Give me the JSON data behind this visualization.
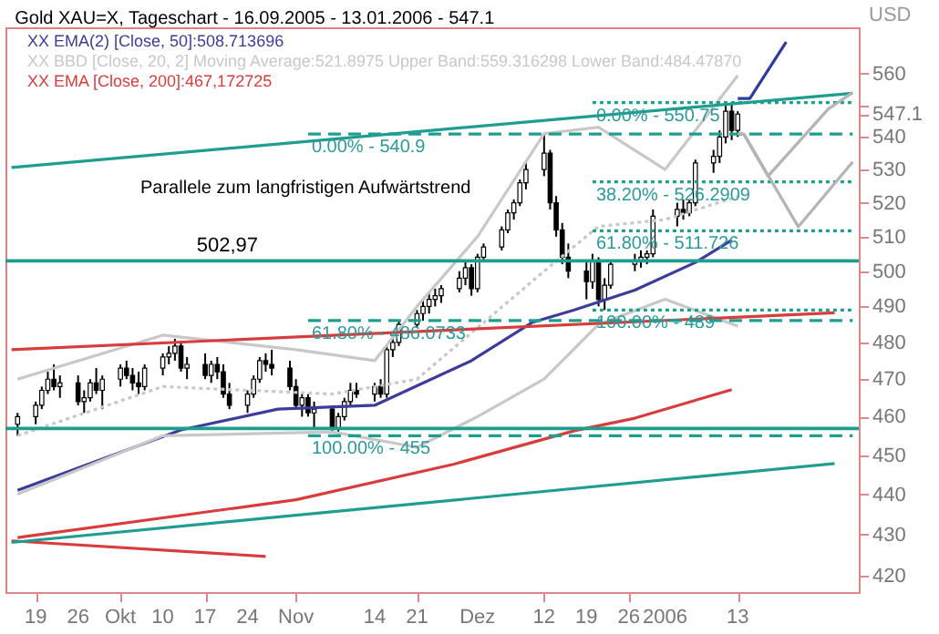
{
  "chart_data": {
    "type": "candlestick",
    "title": "Gold XAU=X, Tageschart - 16.09.2005 - 13.01.2006 - 547.1",
    "ylabel": "USD",
    "log": true,
    "legend": "top left",
    "xlim": [
      "2005-09-14",
      "2006-02-02"
    ],
    "xticks": [
      {
        "value": "2005-09-19",
        "label": "19"
      },
      {
        "value": "2005-09-26",
        "label": "26"
      },
      {
        "value": "2005-10-03",
        "label": "Okt"
      },
      {
        "value": "2005-10-10",
        "label": "10"
      },
      {
        "value": "2005-10-17",
        "label": "17"
      },
      {
        "value": "2005-10-24",
        "label": "24"
      },
      {
        "value": "2005-11-01",
        "label": "Nov"
      },
      {
        "value": "2005-11-14",
        "label": "14"
      },
      {
        "value": "2005-11-21",
        "label": "21"
      },
      {
        "value": "2005-12-01",
        "label": "Dez"
      },
      {
        "value": "2005-12-12",
        "label": "12"
      },
      {
        "value": "2005-12-19",
        "label": "19"
      },
      {
        "value": "2005-12-26",
        "label": "26"
      },
      {
        "value": "2006-01-01",
        "label": "2006"
      },
      {
        "value": "2006-01-13",
        "label": "13"
      }
    ],
    "ylim": [
      416,
      575
    ],
    "yticks": [
      420,
      430,
      440,
      450,
      460,
      470,
      480,
      490,
      500,
      510,
      520,
      530,
      540,
      547.1,
      {
        "value": 550,
        "label": null
      },
      560
    ],
    "x": [
      "2005-09-16",
      "2005-09-19",
      "2005-09-20",
      "2005-09-21",
      "2005-09-22",
      "2005-09-23",
      "2005-09-26",
      "2005-09-27",
      "2005-09-28",
      "2005-09-29",
      "2005-09-30",
      "2005-10-03",
      "2005-10-04",
      "2005-10-05",
      "2005-10-06",
      "2005-10-07",
      "2005-10-10",
      "2005-10-11",
      "2005-10-12",
      "2005-10-13",
      "2005-10-14",
      "2005-10-17",
      "2005-10-18",
      "2005-10-19",
      "2005-10-20",
      "2005-10-21",
      "2005-10-24",
      "2005-10-25",
      "2005-10-26",
      "2005-10-27",
      "2005-10-28",
      "2005-10-31",
      "2005-11-01",
      "2005-11-02",
      "2005-11-03",
      "2005-11-04",
      "2005-11-07",
      "2005-11-08",
      "2005-11-09",
      "2005-11-10",
      "2005-11-11",
      "2005-11-14",
      "2005-11-15",
      "2005-11-16",
      "2005-11-17",
      "2005-11-18",
      "2005-11-21",
      "2005-11-22",
      "2005-11-23",
      "2005-11-24",
      "2005-11-25",
      "2005-11-28",
      "2005-11-29",
      "2005-11-30",
      "2005-12-01",
      "2005-12-02",
      "2005-12-05",
      "2005-12-06",
      "2005-12-07",
      "2005-12-08",
      "2005-12-09",
      "2005-12-12",
      "2005-12-13",
      "2005-12-14",
      "2005-12-15",
      "2005-12-16",
      "2005-12-19",
      "2005-12-20",
      "2005-12-21",
      "2005-12-22",
      "2005-12-23",
      "2005-12-27",
      "2005-12-28",
      "2005-12-29",
      "2005-12-30",
      "2006-01-03",
      "2006-01-04",
      "2006-01-05",
      "2006-01-06",
      "2006-01-09",
      "2006-01-10",
      "2006-01-11",
      "2006-01-12",
      "2006-01-13"
    ],
    "ohlc": [
      [
        458,
        461,
        455,
        460
      ],
      [
        460,
        464,
        458,
        463
      ],
      [
        463,
        468,
        462,
        467
      ],
      [
        467,
        472,
        466,
        470
      ],
      [
        470,
        474,
        467,
        468
      ],
      [
        468,
        471,
        465,
        469
      ],
      [
        469,
        471,
        463,
        464
      ],
      [
        464,
        467,
        461,
        465
      ],
      [
        465,
        470,
        464,
        469
      ],
      [
        469,
        473,
        466,
        467
      ],
      [
        467,
        471,
        462,
        470
      ],
      [
        470,
        474,
        468,
        473
      ],
      [
        473,
        475,
        470,
        471
      ],
      [
        471,
        473,
        467,
        469
      ],
      [
        469,
        472,
        466,
        468
      ],
      [
        468,
        474,
        467,
        473
      ],
      [
        473,
        477,
        471,
        476
      ],
      [
        476,
        479,
        474,
        477
      ],
      [
        477,
        481,
        475,
        479
      ],
      [
        479,
        480,
        472,
        473
      ],
      [
        473,
        476,
        470,
        474
      ],
      [
        474,
        477,
        470,
        471
      ],
      [
        471,
        475,
        469,
        474
      ],
      [
        474,
        476,
        470,
        472
      ],
      [
        472,
        474,
        465,
        466
      ],
      [
        466,
        469,
        462,
        463
      ],
      [
        463,
        467,
        461,
        466
      ],
      [
        466,
        471,
        465,
        470
      ],
      [
        470,
        476,
        469,
        475
      ],
      [
        475,
        477,
        472,
        474
      ],
      [
        474,
        478,
        471,
        473
      ],
      [
        473,
        475,
        467,
        468
      ],
      [
        468,
        470,
        462,
        463
      ],
      [
        463,
        466,
        460,
        465
      ],
      [
        465,
        466,
        460,
        461
      ],
      [
        461,
        464,
        457,
        462
      ],
      [
        462,
        463,
        456,
        457
      ],
      [
        457,
        461,
        455,
        460
      ],
      [
        460,
        465,
        459,
        464
      ],
      [
        464,
        469,
        463,
        467
      ],
      [
        467,
        469,
        465,
        466
      ],
      [
        466,
        469,
        464,
        468
      ],
      [
        468,
        470,
        465,
        466
      ],
      [
        466,
        479,
        465,
        478
      ],
      [
        478,
        482,
        476,
        480
      ],
      [
        480,
        486,
        479,
        485
      ],
      [
        485,
        489,
        484,
        488
      ],
      [
        488,
        492,
        486,
        490
      ],
      [
        490,
        494,
        488,
        492
      ],
      [
        492,
        495,
        490,
        493
      ],
      [
        493,
        496,
        491,
        495
      ],
      [
        495,
        500,
        494,
        498
      ],
      [
        498,
        503,
        496,
        501
      ],
      [
        501,
        502,
        493,
        495
      ],
      [
        495,
        505,
        494,
        504
      ],
      [
        504,
        508,
        503,
        507
      ],
      [
        507,
        513,
        506,
        512
      ],
      [
        512,
        518,
        511,
        517
      ],
      [
        517,
        521,
        515,
        520
      ],
      [
        520,
        527,
        519,
        526
      ],
      [
        526,
        532,
        524,
        530
      ],
      [
        530,
        540.9,
        528,
        535
      ],
      [
        535,
        536,
        518,
        520
      ],
      [
        520,
        522,
        510,
        512
      ],
      [
        512,
        514,
        502,
        504
      ],
      [
        504,
        508,
        498,
        500
      ],
      [
        500,
        503,
        492,
        497
      ],
      [
        497,
        505,
        495,
        503
      ],
      [
        503,
        504,
        490,
        492
      ],
      [
        492,
        498,
        489,
        496
      ],
      [
        496,
        503,
        495,
        502
      ],
      [
        502,
        505,
        500,
        503
      ],
      [
        503,
        506,
        501,
        504
      ],
      [
        504,
        506,
        502,
        505
      ],
      [
        505,
        518,
        504,
        516
      ],
      [
        516,
        520,
        513,
        518
      ],
      [
        518,
        521,
        515,
        517
      ],
      [
        517,
        521,
        516,
        520
      ],
      [
        520,
        533,
        519,
        532
      ],
      [
        532,
        536,
        529,
        534
      ],
      [
        534,
        542,
        532,
        540
      ],
      [
        540,
        550,
        538,
        548
      ],
      [
        548,
        550.75,
        539,
        542
      ],
      [
        542,
        548,
        540,
        547.1
      ]
    ],
    "series": [
      {
        "type": "line",
        "name": "XX EMA(2) [Close, 50]:508.713696",
        "color": "#3c3c9c",
        "x": [
          "2005-09-16",
          "2005-10-13",
          "2005-10-29",
          "2005-11-14",
          "2005-11-30",
          "2005-12-10",
          "2005-12-17",
          "2005-12-27",
          "2006-01-06",
          "2006-01-12"
        ],
        "values": [
          441,
          456.5,
          462,
          463,
          475,
          485.5,
          489,
          494.6,
          502.5,
          509
        ]
      },
      {
        "type": "line",
        "name": "XX BBD [Close, 20, 2] Moving Average:521.8975 Upper Band:559.316298 Lower Band:484.47870",
        "color": "#c8c8c8",
        "line_style": "dotted",
        "x": [
          "2005-09-16",
          "2005-10-10",
          "2005-11-07",
          "2005-11-21",
          "2005-12-12",
          "2005-12-21",
          "2006-01-01",
          "2006-01-13"
        ],
        "values": [
          455,
          468,
          466,
          470,
          500,
          513,
          515,
          521.9
        ]
      },
      {
        "type": "line",
        "color": "#c8c8c8",
        "x": [
          "2005-09-16",
          "2005-10-10",
          "2005-11-01",
          "2005-11-14",
          "2005-11-21",
          "2005-12-01",
          "2005-12-12",
          "2005-12-21",
          "2006-01-01",
          "2006-01-13"
        ],
        "values": [
          470,
          482,
          478,
          475,
          490,
          510,
          541,
          543,
          530,
          559.3
        ]
      },
      {
        "type": "line",
        "color": "#c8c8c8",
        "x": [
          "2005-09-16",
          "2005-10-10",
          "2005-11-07",
          "2005-11-21",
          "2005-12-01",
          "2005-12-12",
          "2005-12-21",
          "2006-01-01",
          "2006-01-13"
        ],
        "values": [
          440,
          455,
          456,
          452,
          460,
          470,
          485,
          492,
          484.5
        ]
      },
      {
        "type": "line",
        "name": "XX EMA [Close, 200]:467,172725",
        "color": "#d83c3c",
        "x": [
          "2005-09-16",
          "2005-11-01",
          "2005-11-27",
          "2005-12-17",
          "2005-12-27",
          "2006-01-12"
        ],
        "values": [
          429.2,
          438.6,
          447.6,
          456.3,
          459.6,
          467.2
        ]
      },
      {
        "type": "line",
        "color": "#d83c3c",
        "x": [
          "2005-09-15",
          "2006-01-29"
        ],
        "values": [
          478,
          488.2
        ]
      },
      {
        "type": "line",
        "color": "#d83c3c",
        "x": [
          "2005-09-15",
          "2005-10-27"
        ],
        "values": [
          428.4,
          424.6
        ]
      },
      {
        "type": "line",
        "color": "#1f9e8f",
        "x": [
          "2005-09-15",
          "2006-02-01"
        ],
        "values": [
          530.6,
          553.7
        ]
      },
      {
        "type": "line",
        "color": "#1f9e8f",
        "x": [
          "2005-09-15",
          "2006-01-29"
        ],
        "values": [
          428,
          447.8
        ]
      },
      {
        "type": "line",
        "color": "#1f9e8f",
        "line_style": "dotted",
        "x": [
          "2005-12-20",
          "2006-02-01"
        ],
        "values": [
          550.75,
          550.75
        ]
      },
      {
        "type": "line",
        "color": "#1f9e8f",
        "line_style": "dotted",
        "x": [
          "2005-12-20",
          "2006-02-01"
        ],
        "values": [
          526.2909,
          526.2909
        ]
      },
      {
        "type": "line",
        "color": "#1f9e8f",
        "line_style": "dotted",
        "x": [
          "2005-12-20",
          "2006-02-01"
        ],
        "values": [
          511.726,
          511.726
        ]
      },
      {
        "type": "line",
        "color": "#1f9e8f",
        "line_style": "dotted",
        "x": [
          "2005-12-20",
          "2006-02-01"
        ],
        "values": [
          489,
          489
        ]
      },
      {
        "type": "line",
        "color": "#1f9e8f",
        "line_style": "dashed",
        "x": [
          "2005-11-03",
          "2006-02-01"
        ],
        "values": [
          540.9,
          540.9
        ]
      },
      {
        "type": "line",
        "color": "#1f9e8f",
        "line_style": "dashed",
        "x": [
          "2005-11-03",
          "2006-02-01"
        ],
        "values": [
          486.0733,
          486.0733
        ]
      },
      {
        "type": "line",
        "color": "#1f9e8f",
        "line_style": "dashed",
        "x": [
          "2005-11-03",
          "2006-02-01"
        ],
        "values": [
          455,
          455
        ]
      },
      {
        "type": "line",
        "color": "#b4b4b4",
        "x": [
          "2006-01-13",
          "2006-01-14",
          "2006-01-18",
          "2006-01-28",
          "2006-02-01"
        ],
        "values": [
          541,
          540.9,
          528,
          548.8,
          553.9
        ]
      },
      {
        "type": "line",
        "color": "#b4b4b4",
        "x": [
          "2006-01-14",
          "2006-01-23",
          "2006-02-01"
        ],
        "values": [
          540.9,
          512.9,
          532.3
        ]
      },
      {
        "type": "line",
        "color": "#2c3c9c",
        "x": [
          "2006-01-13",
          "2006-01-15",
          "2006-01-21"
        ],
        "values": [
          552,
          552,
          570.2
        ]
      }
    ],
    "ref_lines": [
      {
        "axis": "y",
        "value": 502.97,
        "label": "502,97",
        "color": "#1f9e8f"
      },
      {
        "axis": "y",
        "value": 456.9,
        "color": "#1f9e8f"
      }
    ],
    "annotations": [
      "Parallele zum langfristigen Aufwärtstrend",
      {
        "text": "0.00% - 550.75",
        "x": "2005-12-20",
        "y": 550.75
      },
      {
        "text": "38.20% - 526.2909",
        "x": "2005-12-20",
        "y": 526.2909
      },
      {
        "text": "61.80% - 511.726",
        "x": "2005-12-20",
        "y": 511.726
      },
      {
        "text": "100.00% - 489",
        "x": "2005-12-20",
        "y": 489
      },
      {
        "text": "0.00% - 540.9",
        "x": "2005-11-03",
        "y": 540.9
      },
      {
        "text": "61.80% - 486.0733",
        "x": "2005-11-03",
        "y": 486.0733
      },
      {
        "text": "100.00% - 455",
        "x": "2005-11-03",
        "y": 455
      }
    ]
  }
}
